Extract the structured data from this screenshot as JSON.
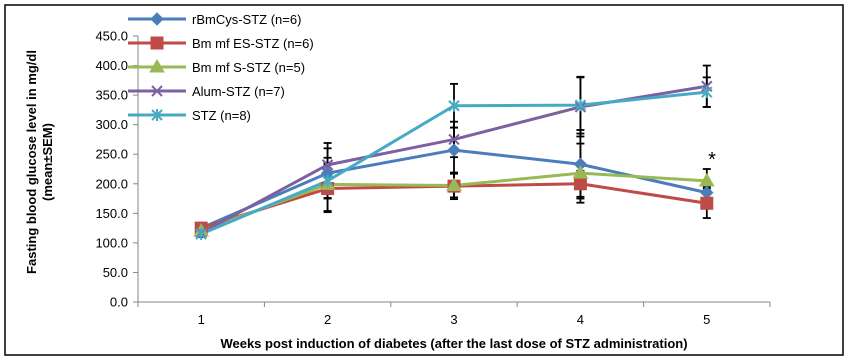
{
  "chart_data": {
    "type": "line",
    "xlabel": "Weeks post induction of diabetes (after the last dose of STZ administration)",
    "ylabel_line1": "Fasting blood glucose level in mg/dl",
    "ylabel_line2": "(mean±SEM)",
    "categories": [
      "1",
      "2",
      "3",
      "4",
      "5"
    ],
    "yticks": [
      "0.0",
      "50.0",
      "100.0",
      "150.0",
      "200.0",
      "250.0",
      "300.0",
      "350.0",
      "400.0",
      "450.0"
    ],
    "ylim": [
      0,
      450
    ],
    "grid": false,
    "legend_position": "top-left",
    "annotation": "*",
    "series": [
      {
        "name": "rBmCys-STZ  (n=6)",
        "color": "#4a7ebb",
        "marker": "diamond",
        "values": [
          125,
          218,
          257,
          233,
          185
        ],
        "sem": [
          5,
          42,
          38,
          58,
          10
        ]
      },
      {
        "name": "Bm mf ES-STZ (n=6)",
        "color": "#be4b48",
        "marker": "square",
        "values": [
          125,
          192,
          196,
          200,
          167
        ],
        "sem": [
          5,
          40,
          22,
          22,
          25
        ]
      },
      {
        "name": "Bm mf S-STZ (n=5)",
        "color": "#98b954",
        "marker": "triangle",
        "values": [
          120,
          199,
          197,
          218,
          205
        ],
        "sem": [
          5,
          45,
          20,
          50,
          20
        ]
      },
      {
        "name": "Alum-STZ (n=7)",
        "color": "#7d60a0",
        "marker": "x",
        "values": [
          117,
          232,
          275,
          330,
          365
        ],
        "sem": [
          5,
          37,
          30,
          50,
          35
        ]
      },
      {
        "name": "STZ (n=8)",
        "color": "#46aac5",
        "marker": "star",
        "values": [
          115,
          205,
          332,
          333,
          355
        ],
        "sem": [
          5,
          30,
          37,
          48,
          25
        ]
      }
    ]
  }
}
